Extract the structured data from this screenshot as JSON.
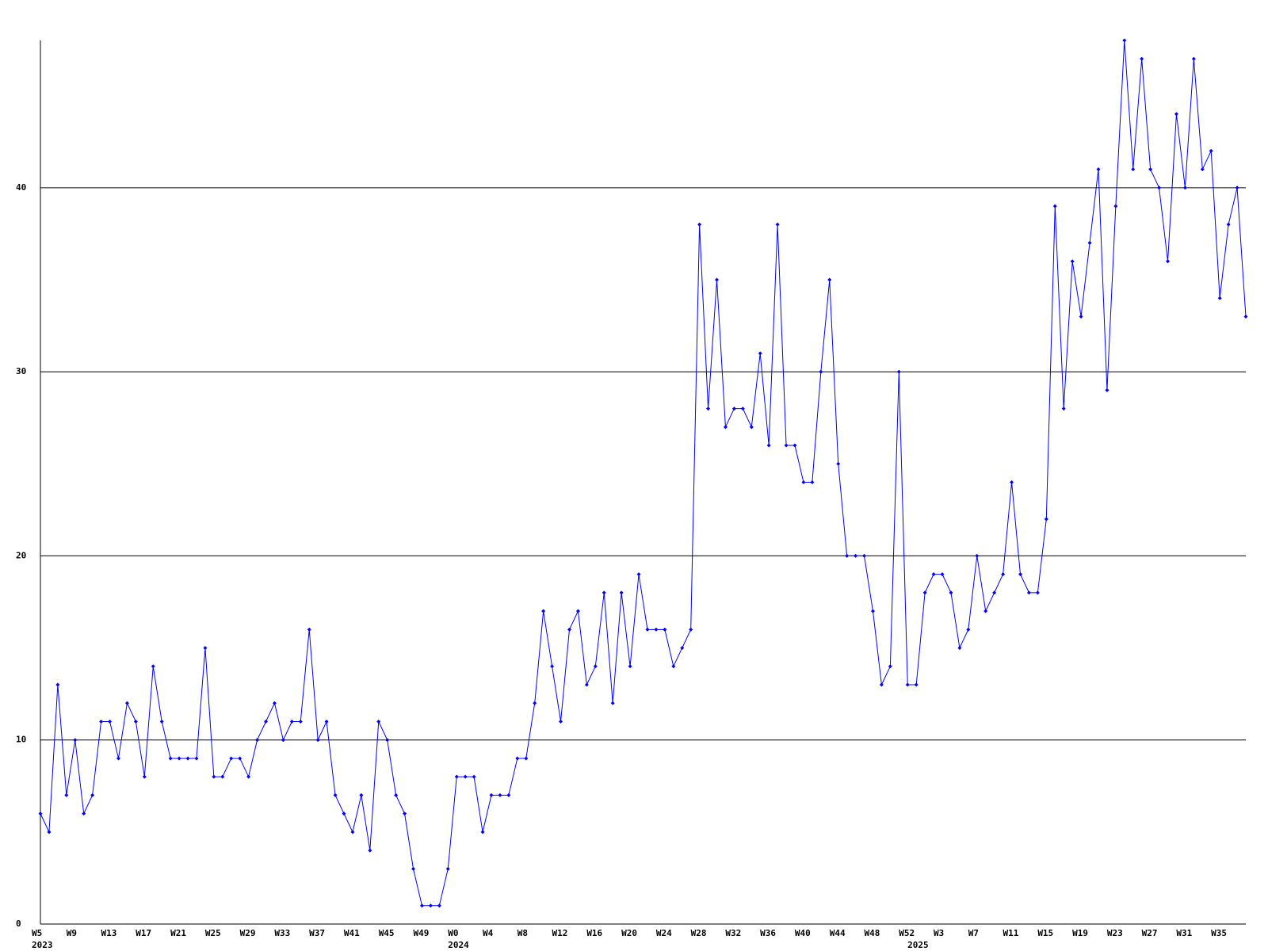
{
  "chart_data": {
    "type": "line",
    "color": "#0000ff",
    "grid": true,
    "ylim": [
      0,
      48
    ],
    "yticks": [
      0,
      10,
      20,
      30,
      40
    ],
    "categories": [
      "W5",
      null,
      null,
      null,
      "W9",
      null,
      null,
      null,
      "W13",
      null,
      null,
      null,
      "W17",
      null,
      null,
      null,
      "W21",
      null,
      null,
      null,
      "W25",
      null,
      null,
      null,
      "W29",
      null,
      null,
      null,
      "W33",
      null,
      null,
      null,
      "W37",
      null,
      null,
      null,
      "W41",
      null,
      null,
      null,
      "W45",
      null,
      null,
      null,
      "W49",
      null,
      null,
      null,
      "W0",
      null,
      null,
      null,
      "W4",
      null,
      null,
      null,
      "W8",
      null,
      null,
      null,
      "W12",
      null,
      null,
      null,
      "W16",
      null,
      null,
      null,
      "W20",
      null,
      null,
      null,
      "W24",
      null,
      null,
      null,
      "W28",
      null,
      null,
      null,
      "W32",
      null,
      null,
      null,
      "W36",
      null,
      null,
      null,
      "W40",
      null,
      null,
      null,
      "W44",
      null,
      null,
      null,
      "W48",
      null,
      null,
      null,
      "W52",
      null,
      null,
      null,
      "W3",
      null,
      null,
      null,
      "W7",
      null,
      null,
      null,
      "W11",
      null,
      null,
      null,
      "W15",
      null,
      null,
      null,
      "W19",
      null,
      null,
      null,
      "W23",
      null,
      null,
      null,
      "W27",
      null,
      null,
      null,
      "W31",
      null,
      null,
      null,
      "W35",
      null,
      null,
      null
    ],
    "category_years": [
      "2023",
      null,
      null,
      null,
      null,
      null,
      null,
      null,
      null,
      null,
      null,
      null,
      null,
      null,
      null,
      null,
      null,
      null,
      null,
      null,
      null,
      null,
      null,
      null,
      null,
      null,
      null,
      null,
      null,
      null,
      null,
      null,
      null,
      null,
      null,
      null,
      null,
      null,
      null,
      null,
      null,
      null,
      null,
      null,
      null,
      null,
      null,
      null,
      "2024",
      null,
      null,
      null,
      null,
      null,
      null,
      null,
      null,
      null,
      null,
      null,
      null,
      null,
      null,
      null,
      null,
      null,
      null,
      null,
      null,
      null,
      null,
      null,
      null,
      null,
      null,
      null,
      null,
      null,
      null,
      null,
      null,
      null,
      null,
      null,
      null,
      null,
      null,
      null,
      null,
      null,
      null,
      null,
      null,
      null,
      null,
      null,
      null,
      null,
      null,
      null,
      null,
      "2025",
      null,
      null,
      null,
      null,
      null,
      null,
      null,
      null,
      null,
      null,
      null,
      null,
      null,
      null,
      null,
      null,
      null,
      null,
      null,
      null,
      null,
      null,
      null,
      null,
      null,
      null,
      null,
      null,
      null,
      null,
      null,
      null,
      null,
      null,
      null,
      null,
      null,
      null
    ],
    "values": [
      6,
      5,
      13,
      7,
      10,
      6,
      7,
      11,
      11,
      9,
      12,
      11,
      8,
      14,
      11,
      9,
      9,
      9,
      9,
      15,
      8,
      8,
      9,
      9,
      8,
      10,
      11,
      12,
      10,
      11,
      11,
      16,
      10,
      11,
      7,
      6,
      5,
      7,
      4,
      11,
      10,
      7,
      6,
      3,
      1,
      1,
      1,
      3,
      8,
      8,
      8,
      5,
      7,
      7,
      7,
      9,
      9,
      12,
      17,
      14,
      11,
      16,
      17,
      13,
      14,
      18,
      12,
      18,
      14,
      19,
      16,
      16,
      16,
      14,
      15,
      16,
      38,
      28,
      35,
      27,
      28,
      28,
      27,
      31,
      26,
      38,
      26,
      26,
      24,
      24,
      30,
      35,
      25,
      20,
      20,
      20,
      17,
      13,
      14,
      30,
      13,
      13,
      18,
      19,
      19,
      18,
      15,
      16,
      20,
      17,
      18,
      19,
      24,
      19,
      18,
      18,
      22,
      39,
      28,
      36,
      33,
      37,
      41,
      29,
      39,
      48,
      41,
      47,
      41,
      40,
      36,
      44,
      40,
      47,
      41,
      42,
      34,
      38,
      40,
      33
    ]
  }
}
